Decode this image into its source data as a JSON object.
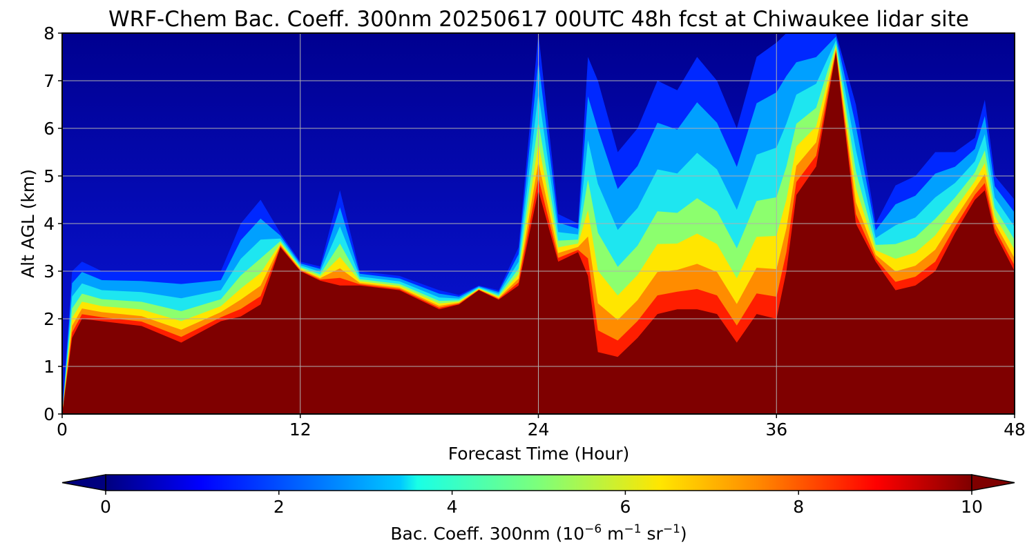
{
  "chart_data": {
    "type": "heatmap",
    "title": "WRF-Chem Bac. Coeff. 300nm  20250617 00UTC 48h fcst at Chiwaukee lidar site",
    "xlabel": "Forecast Time (Hour)",
    "ylabel": "Alt AGL (km)",
    "xlim": [
      0,
      48
    ],
    "ylim": [
      0,
      8
    ],
    "x_ticks": [
      "0",
      "12",
      "24",
      "36",
      "48"
    ],
    "y_ticks": [
      "0",
      "1",
      "2",
      "3",
      "4",
      "5",
      "6",
      "7",
      "8"
    ],
    "grid": true,
    "colorbar": {
      "label_main": "Bac. Coeff. 300nm  (10",
      "label_exp1": "−6",
      "label_mid": " m",
      "label_exp2": "−1",
      "label_mid2": " sr",
      "label_exp3": "−1",
      "label_end": ")",
      "range": [
        0,
        10
      ],
      "ticks": [
        "0",
        "2",
        "4",
        "6",
        "8",
        "10"
      ],
      "colormap": "jet",
      "extend": "both",
      "placement": "bottom"
    },
    "x_hours": [
      0,
      0.5,
      1,
      2,
      4,
      6,
      8,
      9,
      10,
      11,
      12,
      13,
      14,
      15,
      17,
      19,
      20,
      21,
      22,
      23,
      24,
      25,
      26,
      26.5,
      27,
      28,
      29,
      30,
      31,
      32,
      33,
      34,
      35,
      36,
      36.5,
      37,
      38,
      39,
      40,
      41,
      42,
      43,
      44,
      45,
      46,
      46.5,
      47,
      48
    ],
    "boundary_layer_top_km": [
      0.0,
      1.6,
      2.0,
      1.95,
      1.85,
      1.5,
      1.95,
      2.05,
      2.3,
      3.5,
      3.0,
      2.8,
      2.7,
      2.7,
      2.6,
      2.2,
      2.3,
      2.6,
      2.4,
      2.7,
      4.7,
      3.2,
      3.4,
      2.9,
      1.3,
      1.2,
      1.6,
      2.1,
      2.2,
      2.2,
      2.1,
      1.5,
      2.1,
      2.0,
      3.0,
      4.6,
      5.2,
      7.6,
      4.0,
      3.2,
      2.6,
      2.7,
      3.0,
      3.8,
      4.5,
      4.7,
      3.8,
      3.0
    ],
    "aerosol_plume_top_km": [
      0.0,
      3.0,
      3.2,
      3.0,
      3.0,
      3.0,
      3.0,
      4.0,
      4.5,
      3.8,
      3.2,
      3.1,
      4.7,
      3.0,
      2.9,
      2.6,
      2.5,
      2.7,
      2.6,
      3.5,
      8.0,
      4.2,
      4.0,
      7.5,
      7.0,
      5.5,
      6.0,
      7.0,
      6.8,
      7.5,
      7.0,
      6.0,
      7.5,
      7.8,
      8.0,
      8.0,
      8.0,
      8.0,
      6.5,
      4.0,
      4.8,
      5.0,
      5.5,
      5.5,
      5.8,
      6.6,
      5.0,
      4.5
    ]
  }
}
